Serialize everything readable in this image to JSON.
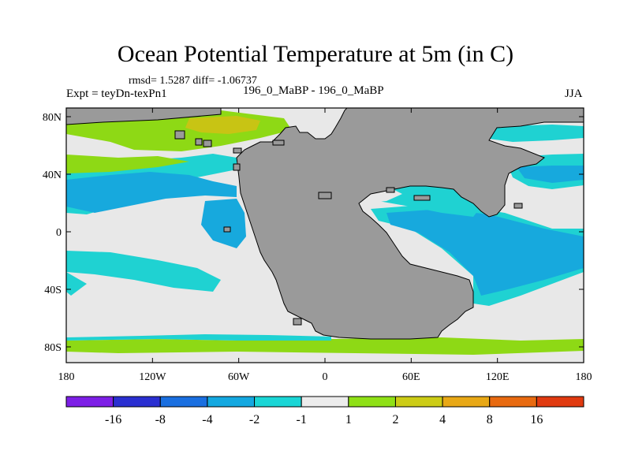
{
  "title": "Ocean Potential Temperature at 5m (in C)",
  "stats_line": "rmsd= 1.5287  diff= -1.06737",
  "experiment_label": "Expt = teyDn-texPn1",
  "case_label": "196_0_MaBP - 196_0_MaBP",
  "season": "JJA",
  "x_ticks": [
    "180",
    "120W",
    "60W",
    "0",
    "60E",
    "120E",
    "180"
  ],
  "y_ticks": [
    "80N",
    "40N",
    "0",
    "40S",
    "80S"
  ],
  "colorbar": {
    "colors": [
      "#7d1fe6",
      "#2a2fd1",
      "#1a6fe0",
      "#14a8e0",
      "#1ad6d6",
      "#ececec",
      "#8fe016",
      "#cccc16",
      "#e8a816",
      "#e86a10",
      "#e03a10"
    ],
    "labels": [
      "-16",
      "-8",
      "-4",
      "-2",
      "-1",
      "1",
      "2",
      "4",
      "8",
      "16"
    ]
  },
  "colors": {
    "land": "#9a9a9a",
    "neutral": "#e8e8e8",
    "cyan": "#1fd2d2",
    "blue": "#17a9dd",
    "green": "#8ed915",
    "yellow": "#c8c414"
  }
}
